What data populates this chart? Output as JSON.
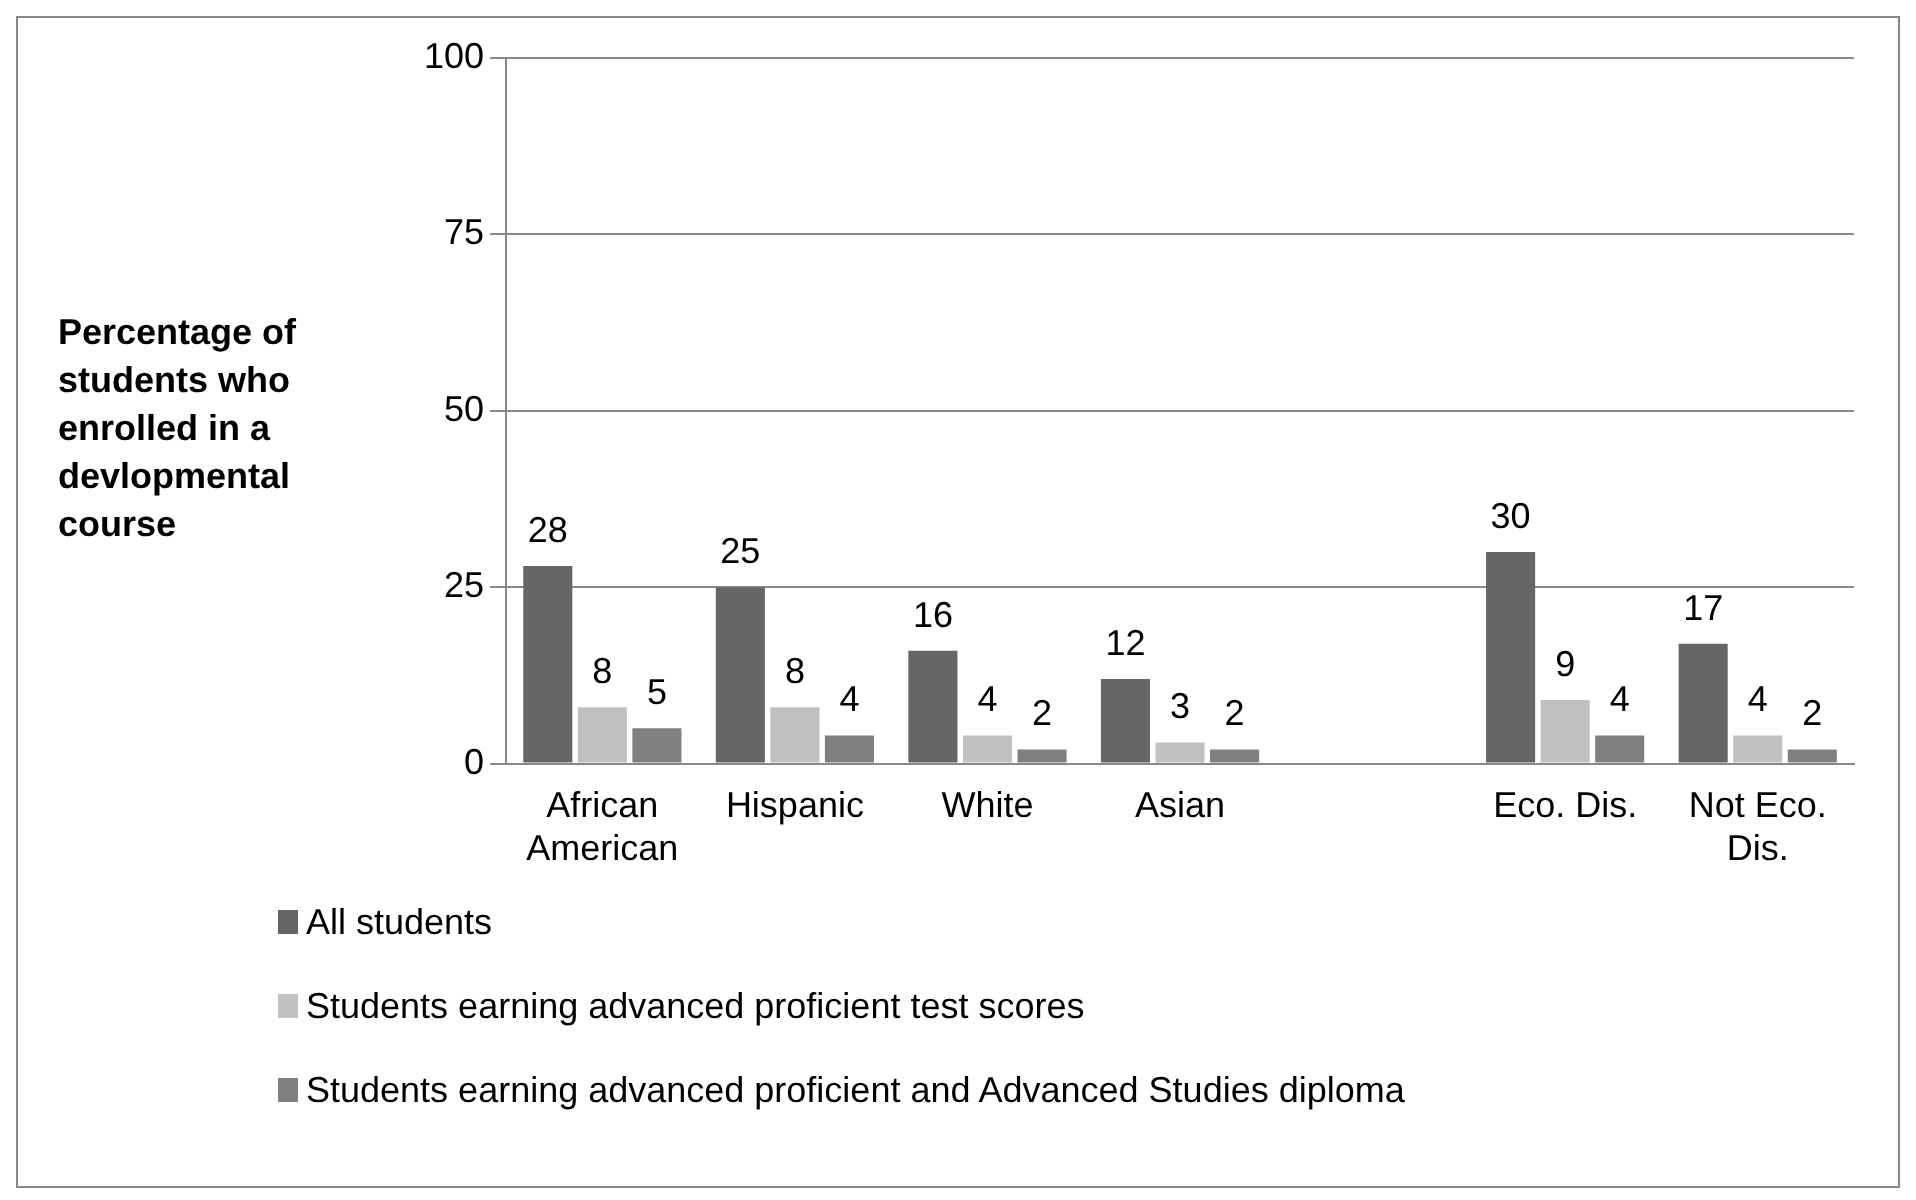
{
  "chart_data": {
    "type": "bar",
    "ylabel": "Percentage of students who enrolled in a devlopmental course",
    "categories": [
      "African American",
      "Hispanic",
      "White",
      "Asian",
      null,
      "Eco. Dis.",
      "Not Eco. Dis."
    ],
    "series": [
      {
        "name": "All students",
        "color": "#666666",
        "values": [
          28,
          25,
          16,
          12,
          null,
          30,
          17
        ]
      },
      {
        "name": "Students earning advanced proficient test scores",
        "color": "#c0c0c0",
        "values": [
          8,
          8,
          4,
          3,
          null,
          9,
          4
        ]
      },
      {
        "name": "Students earning advanced proficient and Advanced Studies diploma",
        "color": "#808080",
        "values": [
          5,
          4,
          2,
          2,
          null,
          4,
          2
        ]
      }
    ],
    "ylim": [
      0,
      100
    ],
    "yticks": [
      0,
      25,
      50,
      75,
      100
    ],
    "grid": "y",
    "data_labels": true,
    "legend": "bottom"
  }
}
